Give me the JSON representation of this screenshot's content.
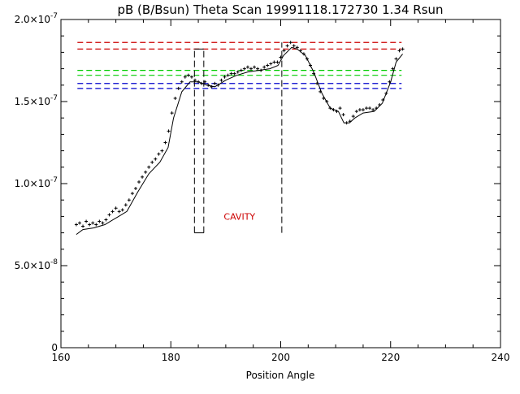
{
  "chart_data": {
    "type": "scatter",
    "title": "pB (B/Bsun) Theta Scan 19991118.172730 1.34 Rsun",
    "xlabel": "Position Angle",
    "ylabel": "",
    "xlim": [
      160,
      240
    ],
    "ylim": [
      0,
      2e-07
    ],
    "x_ticks": [
      "160",
      "180",
      "200",
      "220",
      "240"
    ],
    "y_ticks": [
      {
        "value": 0,
        "mantissa": "0",
        "exponent": ""
      },
      {
        "value": 5e-08,
        "mantissa": "5.0×10",
        "exponent": "-8"
      },
      {
        "value": 1e-07,
        "mantissa": "1.0×10",
        "exponent": "-7"
      },
      {
        "value": 1.5e-07,
        "mantissa": "1.5×10",
        "exponent": "-7"
      },
      {
        "value": 2e-07,
        "mantissa": "2.0×10",
        "exponent": "-7"
      }
    ],
    "grid": false,
    "annotation": {
      "text": "CAVITY",
      "x": 192.5,
      "y": 7.8e-08,
      "color": "#cc0000"
    },
    "reference_lines": [
      {
        "y": 1.86e-07,
        "x0": 163,
        "x1": 222,
        "color": "#cc0000"
      },
      {
        "y": 1.82e-07,
        "x0": 163,
        "x1": 222,
        "color": "#cc0000"
      },
      {
        "y": 1.69e-07,
        "x0": 163,
        "x1": 222,
        "color": "#00cc00"
      },
      {
        "y": 1.66e-07,
        "x0": 163,
        "x1": 222,
        "color": "#00cc00"
      },
      {
        "y": 1.61e-07,
        "x0": 163,
        "x1": 222,
        "color": "#0000cc"
      },
      {
        "y": 1.58e-07,
        "x0": 163,
        "x1": 222,
        "color": "#0000cc"
      }
    ],
    "vertical_markers": [
      {
        "x": 184.3,
        "y0": 7e-08,
        "y1": 1.82e-07
      },
      {
        "x": 186.0,
        "y0": 7e-08,
        "y1": 1.82e-07
      },
      {
        "x": 200.2,
        "y0": 7e-08,
        "y1": 1.86e-07
      }
    ],
    "series": [
      {
        "kind": "points",
        "x": [
          162.8,
          163.4,
          164.0,
          164.6,
          165.2,
          165.8,
          166.4,
          167.0,
          167.6,
          168.2,
          168.8,
          169.4,
          170.0,
          170.6,
          171.2,
          171.8,
          172.4,
          173.0,
          173.6,
          174.2,
          174.8,
          175.4,
          176.0,
          176.6,
          177.2,
          177.8,
          178.4,
          179.0,
          179.6,
          180.2,
          180.8,
          181.4,
          182.0,
          182.6,
          183.2,
          183.8,
          184.4,
          185.0,
          185.6,
          186.2,
          186.8,
          187.4,
          188.0,
          188.6,
          189.2,
          189.8,
          190.4,
          191.0,
          191.6,
          192.2,
          192.8,
          193.4,
          194.0,
          194.6,
          195.2,
          195.8,
          196.4,
          197.0,
          197.6,
          198.2,
          198.8,
          199.4,
          200.0,
          200.6,
          201.2,
          201.8,
          202.4,
          203.0,
          203.6,
          204.2,
          204.8,
          205.4,
          206.0,
          206.6,
          207.2,
          207.8,
          208.4,
          209.0,
          209.6,
          210.2,
          210.8,
          211.4,
          212.0,
          212.6,
          213.2,
          213.8,
          214.4,
          215.0,
          215.6,
          216.2,
          216.8,
          217.4,
          218.0,
          218.6,
          219.2,
          219.8,
          220.4,
          221.0,
          221.6,
          222.2
        ],
        "y": [
          7.5e-08,
          7.6e-08,
          7.4e-08,
          7.7e-08,
          7.5e-08,
          7.6e-08,
          7.5e-08,
          7.7e-08,
          7.6e-08,
          7.8e-08,
          8.1e-08,
          8.3e-08,
          8.5e-08,
          8.3e-08,
          8.4e-08,
          8.7e-08,
          9e-08,
          9.4e-08,
          9.7e-08,
          1.01e-07,
          1.04e-07,
          1.07e-07,
          1.1e-07,
          1.13e-07,
          1.15e-07,
          1.18e-07,
          1.2e-07,
          1.25e-07,
          1.32e-07,
          1.43e-07,
          1.52e-07,
          1.58e-07,
          1.62e-07,
          1.65e-07,
          1.66e-07,
          1.65e-07,
          1.63e-07,
          1.62e-07,
          1.61e-07,
          1.62e-07,
          1.6e-07,
          1.59e-07,
          1.61e-07,
          1.6e-07,
          1.63e-07,
          1.65e-07,
          1.66e-07,
          1.67e-07,
          1.67e-07,
          1.68e-07,
          1.69e-07,
          1.7e-07,
          1.71e-07,
          1.7e-07,
          1.71e-07,
          1.7e-07,
          1.69e-07,
          1.71e-07,
          1.72e-07,
          1.73e-07,
          1.74e-07,
          1.74e-07,
          1.77e-07,
          1.81e-07,
          1.84e-07,
          1.86e-07,
          1.84e-07,
          1.83e-07,
          1.81e-07,
          1.79e-07,
          1.76e-07,
          1.72e-07,
          1.67e-07,
          1.61e-07,
          1.56e-07,
          1.52e-07,
          1.5e-07,
          1.46e-07,
          1.45e-07,
          1.44e-07,
          1.46e-07,
          1.42e-07,
          1.37e-07,
          1.38e-07,
          1.41e-07,
          1.44e-07,
          1.45e-07,
          1.45e-07,
          1.46e-07,
          1.46e-07,
          1.45e-07,
          1.46e-07,
          1.48e-07,
          1.51e-07,
          1.55e-07,
          1.62e-07,
          1.7e-07,
          1.76e-07,
          1.81e-07,
          1.82e-07
        ]
      },
      {
        "kind": "line",
        "x": [
          162.8,
          164,
          166,
          168,
          169.5,
          170.5,
          172,
          174,
          176,
          178,
          179.5,
          180.5,
          182,
          183.5,
          185,
          186.5,
          188,
          190,
          192,
          194,
          196,
          198,
          199.5,
          200.5,
          202,
          203,
          204.5,
          206,
          207.5,
          209,
          210.5,
          211.5,
          212.5,
          213.5,
          215,
          217,
          218.5,
          220,
          221,
          222.2
        ],
        "y": [
          6.9e-08,
          7.2e-08,
          7.3e-08,
          7.5e-08,
          7.8e-08,
          8e-08,
          8.3e-08,
          9.5e-08,
          1.06e-07,
          1.13e-07,
          1.22e-07,
          1.4e-07,
          1.56e-07,
          1.62e-07,
          1.62e-07,
          1.6e-07,
          1.59e-07,
          1.63e-07,
          1.66e-07,
          1.68e-07,
          1.69e-07,
          1.7e-07,
          1.72e-07,
          1.78e-07,
          1.83e-07,
          1.82e-07,
          1.78e-07,
          1.68e-07,
          1.55e-07,
          1.46e-07,
          1.44e-07,
          1.37e-07,
          1.37e-07,
          1.4e-07,
          1.43e-07,
          1.44e-07,
          1.49e-07,
          1.62e-07,
          1.74e-07,
          1.79e-07
        ]
      }
    ]
  }
}
